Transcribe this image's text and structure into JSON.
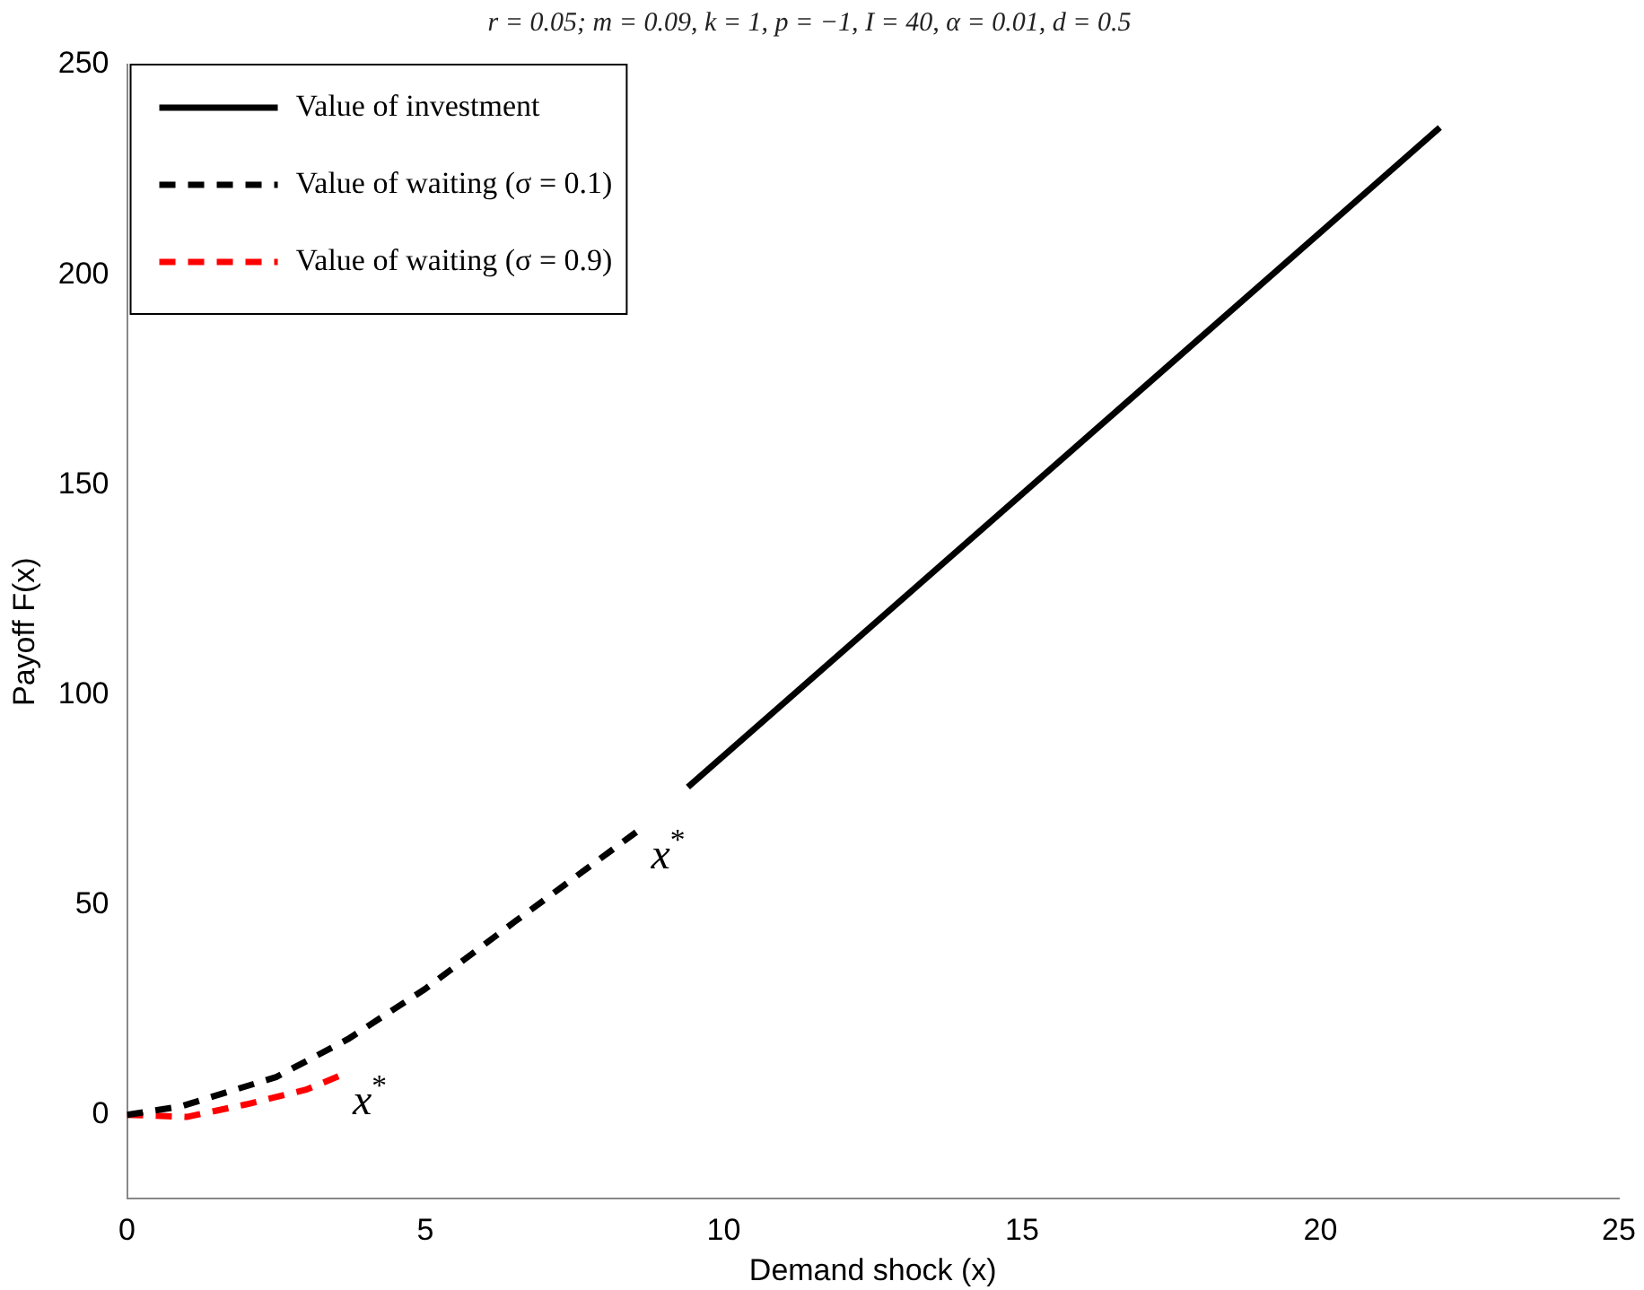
{
  "chart_data": {
    "type": "line",
    "title": "r = 0.05; m = 0.09, k = 1, p = −1, I = 40, α = 0.01, d = 0.5",
    "xlabel": "Demand shock (x)",
    "ylabel": "Payoff F(x)",
    "xlim": [
      0,
      25
    ],
    "xticks": [
      0,
      5,
      10,
      15,
      20,
      25
    ],
    "ylim": [
      -20,
      250
    ],
    "yticks": [
      0,
      50,
      100,
      150,
      200,
      250
    ],
    "grid": false,
    "legend": "top left",
    "series": [
      {
        "name": "Value of investment",
        "color": "#000000",
        "line_style": "solid",
        "x": [
          9.4,
          22
        ],
        "values": [
          78,
          235
        ]
      },
      {
        "name": "Value of waiting (σ = 0.1)",
        "color": "#000000",
        "line_style": "dashed",
        "x": [
          0,
          0.9,
          2.5,
          3.7,
          5,
          6.5,
          8.6
        ],
        "values": [
          0,
          2,
          9,
          18,
          30,
          46,
          68
        ]
      },
      {
        "name": "Value of waiting (σ = 0.9)",
        "color": "#ff0000",
        "line_style": "dashed",
        "x": [
          0,
          1,
          2,
          3,
          3.6
        ],
        "values": [
          0,
          -0.5,
          2.5,
          6,
          9.5
        ]
      }
    ],
    "annotations": [
      {
        "text": "x$^{*}$",
        "x": 8.6,
        "y": 68
      },
      {
        "text": "x$^{*}$",
        "x": 3.6,
        "y": 9.5
      }
    ]
  }
}
